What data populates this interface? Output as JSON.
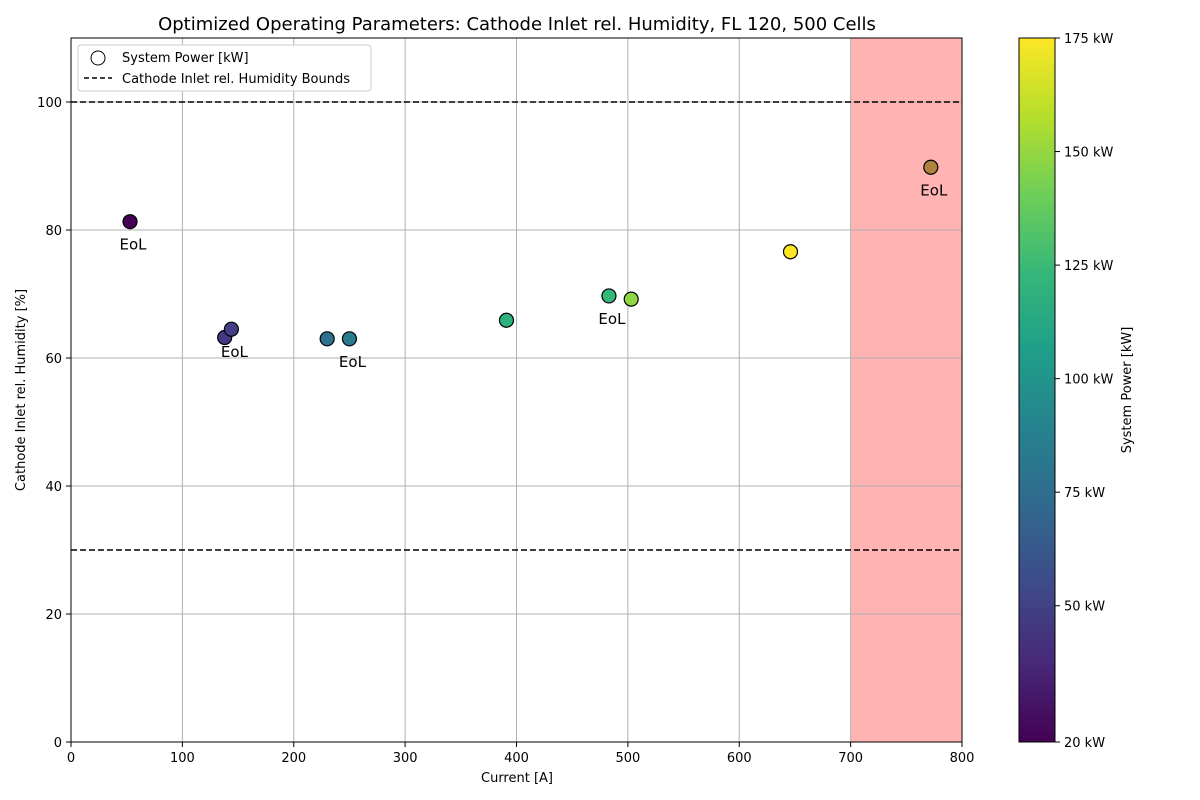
{
  "chart_data": {
    "type": "scatter",
    "title": "Optimized Operating Parameters: Cathode Inlet rel. Humidity, FL 120, 500 Cells",
    "xlabel": "Current [A]",
    "ylabel": "Cathode Inlet rel. Humidity [%]",
    "xlim": [
      0,
      800
    ],
    "ylim": [
      0,
      110
    ],
    "xticks": [
      0,
      100,
      200,
      300,
      400,
      500,
      600,
      700,
      800
    ],
    "yticks": [
      0,
      20,
      40,
      60,
      80,
      100
    ],
    "grid": true,
    "legend": {
      "position": "top-left",
      "entries": [
        {
          "label": "System Power [kW]",
          "marker": "circle"
        },
        {
          "label": "Cathode Inlet rel. Humidity Bounds",
          "marker": "dashed-line"
        }
      ]
    },
    "bounds": [
      30,
      100
    ],
    "shaded_region": {
      "x_from": 700,
      "x_to": 800,
      "color": "#ffb3b3"
    },
    "colorbar": {
      "label": "System Power [kW]",
      "min": 20,
      "max": 175,
      "ticks": [
        20,
        50,
        75,
        100,
        125,
        150,
        175
      ],
      "tick_labels": [
        "20 kW",
        "50 kW",
        "75 kW",
        "100 kW",
        "125 kW",
        "150 kW",
        "175 kW"
      ],
      "colors": [
        "#440154",
        "#482878",
        "#3e4a89",
        "#31688e",
        "#26828e",
        "#1f9e89",
        "#35b779",
        "#6ece58",
        "#b5de2b",
        "#fde725"
      ]
    },
    "points": [
      {
        "x": 53,
        "y": 81.3,
        "power": 20,
        "color": "#440154",
        "label": "EoL"
      },
      {
        "x": 138,
        "y": 63.2,
        "power": 45,
        "color": "#443983",
        "label": ""
      },
      {
        "x": 144,
        "y": 64.5,
        "power": 47,
        "color": "#433e85",
        "label": "EoL"
      },
      {
        "x": 230,
        "y": 63.0,
        "power": 80,
        "color": "#2c728e",
        "label": ""
      },
      {
        "x": 250,
        "y": 63.0,
        "power": 83,
        "color": "#287c8e",
        "label": "EoL"
      },
      {
        "x": 391,
        "y": 65.9,
        "power": 128,
        "color": "#2db27d",
        "label": ""
      },
      {
        "x": 483,
        "y": 69.7,
        "power": 125,
        "color": "#35b779",
        "label": "EoL"
      },
      {
        "x": 503,
        "y": 69.2,
        "power": 150,
        "color": "#8fd744",
        "label": ""
      },
      {
        "x": 646,
        "y": 76.6,
        "power": 175,
        "color": "#fde725",
        "label": ""
      },
      {
        "x": 772,
        "y": 89.8,
        "power": 175,
        "color": "#b0823e",
        "label": "EoL"
      }
    ]
  }
}
